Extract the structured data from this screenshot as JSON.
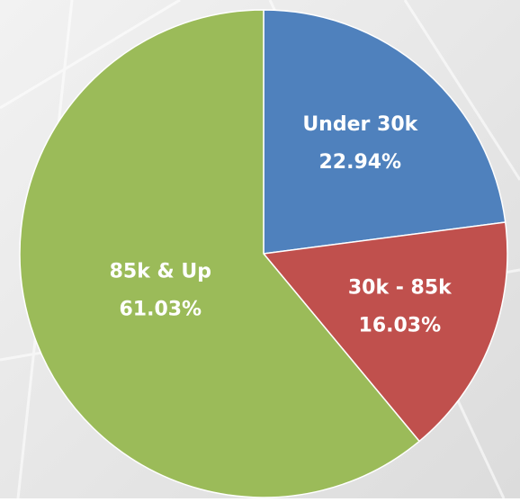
{
  "chart_data": {
    "type": "pie",
    "categories": [
      "Under 30k",
      "30k - 85k",
      "85k & Up"
    ],
    "values": [
      22.94,
      16.03,
      61.03
    ],
    "value_labels": [
      "22.94%",
      "16.03%",
      "61.03%"
    ],
    "colors": [
      "#4f81bd",
      "#c0504d",
      "#9bbb59"
    ]
  }
}
